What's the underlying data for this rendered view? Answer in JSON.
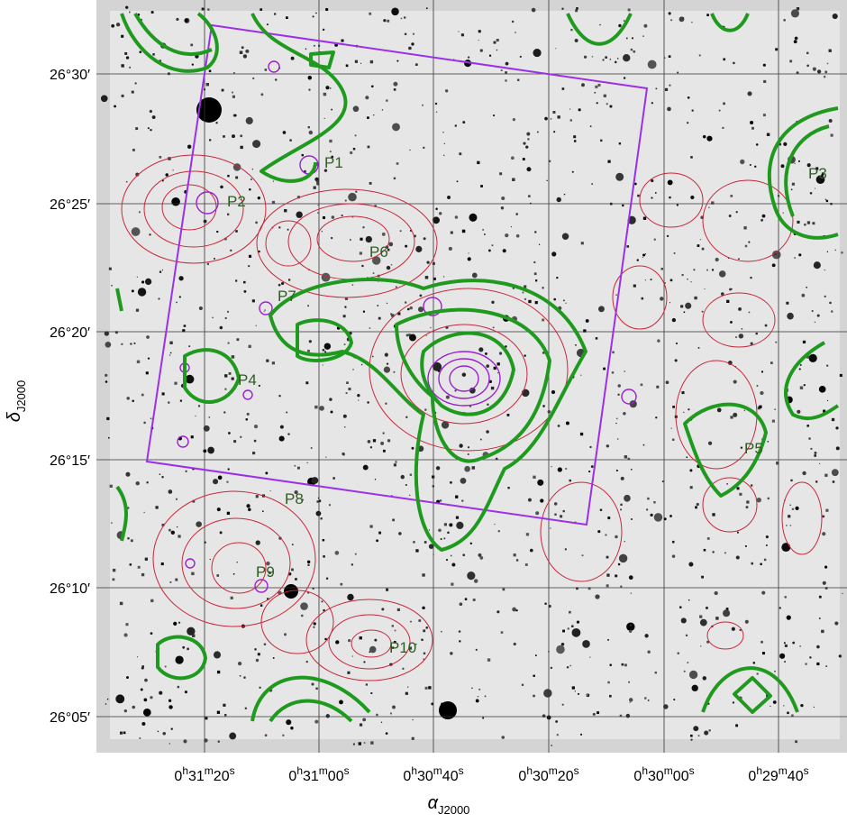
{
  "x_axis": {
    "ticks": [
      [
        "0",
        "h",
        "31",
        "m",
        "20",
        "s"
      ],
      [
        "0",
        "h",
        "31",
        "m",
        "00",
        "s"
      ],
      [
        "0",
        "h",
        "30",
        "m",
        "40",
        "s"
      ],
      [
        "0",
        "h",
        "30",
        "m",
        "20",
        "s"
      ],
      [
        "0",
        "h",
        "30",
        "m",
        "00",
        "s"
      ],
      [
        "0",
        "h",
        "29",
        "m",
        "40",
        "s"
      ]
    ],
    "title": [
      "α",
      "J2000"
    ]
  },
  "y_axis": {
    "ticks": [
      "26°30′",
      "26°25′",
      "26°20′",
      "26°15′",
      "26°10′",
      "26°05′"
    ],
    "title": [
      "δ",
      "J2000"
    ]
  },
  "regions": [
    "P1",
    "P2",
    "P3",
    "P4",
    "P5",
    "P6",
    "P7",
    "P8",
    "P9",
    "P10"
  ]
}
